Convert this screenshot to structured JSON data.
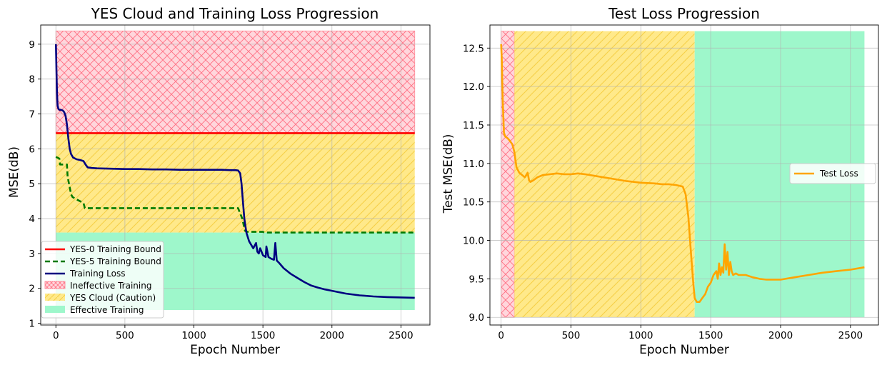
{
  "colors": {
    "ineffective_fill": "#ffc8d0",
    "ineffective_hatch": "#ff5a6e",
    "cloud_fill": "#ffe98a",
    "cloud_hatch": "#f7d34d",
    "effective_fill": "#9ef7cb",
    "red": "#ff0000",
    "green": "#007a00",
    "navy": "#000080",
    "orange": "#ffa500"
  },
  "chart_data": [
    {
      "type": "line",
      "title": "YES Cloud and Training Loss Progression",
      "xlabel": "Epoch Number",
      "ylabel": "MSE(dB)",
      "xlim": [
        -110,
        2710
      ],
      "ylim": [
        0.95,
        9.55
      ],
      "xticks": [
        0,
        500,
        1000,
        1500,
        2000,
        2500
      ],
      "xtick_labels": [
        "0",
        "500",
        "1000",
        "1500",
        "2000",
        "2500"
      ],
      "yticks": [
        1,
        2,
        3,
        4,
        5,
        6,
        7,
        8,
        9
      ],
      "ytick_labels": [
        "1",
        "2",
        "3",
        "4",
        "5",
        "6",
        "7",
        "8",
        "9"
      ],
      "grid": true,
      "legend_position": "lower-left",
      "regions": [
        {
          "name": "Ineffective Training",
          "x": [
            0,
            2600
          ],
          "y": [
            6.45,
            9.38
          ],
          "style": "hatch-cross"
        },
        {
          "name": "YES Cloud (Caution)",
          "x": [
            0,
            2600
          ],
          "y": [
            3.6,
            6.45
          ],
          "style": "hatch-diag"
        },
        {
          "name": "Effective Training",
          "x": [
            0,
            2600
          ],
          "y": [
            1.38,
            3.6
          ],
          "style": "solid"
        }
      ],
      "series": [
        {
          "name": "YES-0 Training Bound",
          "style": "solid",
          "color": "#ff0000",
          "x": [
            0,
            2600
          ],
          "y": [
            6.45,
            6.45
          ]
        },
        {
          "name": "YES-5 Training Bound",
          "style": "dashed",
          "color": "#007a00",
          "x": [
            0,
            10,
            25,
            30,
            80,
            85,
            110,
            120,
            150,
            200,
            210,
            1320,
            1330,
            1350,
            1370,
            1390,
            1500,
            1510,
            2600
          ],
          "y": [
            5.77,
            5.75,
            5.72,
            5.55,
            5.55,
            5.2,
            4.7,
            4.62,
            4.55,
            4.45,
            4.3,
            4.3,
            4.2,
            4.0,
            3.65,
            3.62,
            3.62,
            3.6,
            3.6
          ]
        },
        {
          "name": "Training Loss",
          "style": "solid",
          "color": "#000080",
          "x": [
            0,
            4,
            8,
            12,
            18,
            25,
            35,
            50,
            60,
            70,
            80,
            90,
            100,
            110,
            125,
            150,
            175,
            200,
            215,
            230,
            260,
            300,
            400,
            500,
            600,
            700,
            800,
            900,
            1000,
            1100,
            1200,
            1260,
            1300,
            1320,
            1335,
            1345,
            1355,
            1365,
            1380,
            1400,
            1430,
            1450,
            1460,
            1470,
            1480,
            1500,
            1520,
            1525,
            1540,
            1560,
            1580,
            1590,
            1600,
            1620,
            1650,
            1700,
            1750,
            1800,
            1850,
            1900,
            1950,
            2000,
            2100,
            2200,
            2300,
            2400,
            2500,
            2600
          ],
          "y": [
            9.0,
            8.3,
            7.6,
            7.25,
            7.15,
            7.12,
            7.12,
            7.1,
            7.05,
            6.95,
            6.7,
            6.3,
            6.0,
            5.85,
            5.75,
            5.7,
            5.68,
            5.65,
            5.55,
            5.47,
            5.45,
            5.44,
            5.43,
            5.42,
            5.42,
            5.41,
            5.41,
            5.4,
            5.4,
            5.4,
            5.4,
            5.39,
            5.39,
            5.38,
            5.3,
            5.0,
            4.5,
            4.0,
            3.6,
            3.35,
            3.15,
            3.3,
            3.05,
            3.0,
            3.15,
            2.95,
            2.9,
            3.2,
            2.9,
            2.85,
            2.82,
            3.3,
            2.8,
            2.72,
            2.58,
            2.42,
            2.3,
            2.18,
            2.08,
            2.02,
            1.97,
            1.93,
            1.85,
            1.8,
            1.77,
            1.75,
            1.74,
            1.73
          ]
        }
      ]
    },
    {
      "type": "line",
      "title": "Test Loss Progression",
      "xlabel": "Epoch Number",
      "ylabel": "Test MSE(dB)",
      "xlim": [
        -80,
        2700
      ],
      "ylim": [
        8.9,
        12.8
      ],
      "xticks": [
        0,
        500,
        1000,
        1500,
        2000,
        2500
      ],
      "xtick_labels": [
        "0",
        "500",
        "1000",
        "1500",
        "2000",
        "2500"
      ],
      "yticks": [
        9.0,
        9.5,
        10.0,
        10.5,
        11.0,
        11.5,
        12.0,
        12.5
      ],
      "ytick_labels": [
        "9.0",
        "9.5",
        "10.0",
        "10.5",
        "11.0",
        "11.5",
        "12.0",
        "12.5"
      ],
      "grid": true,
      "legend_position": "center-right",
      "regions": [
        {
          "name": "Ineffective Training",
          "x": [
            0,
            95
          ],
          "y": [
            9.0,
            12.72
          ],
          "style": "hatch-cross"
        },
        {
          "name": "YES Cloud (Caution)",
          "x": [
            95,
            1385
          ],
          "y": [
            9.0,
            12.72
          ],
          "style": "hatch-diag"
        },
        {
          "name": "Effective Training",
          "x": [
            1385,
            2600
          ],
          "y": [
            9.0,
            12.72
          ],
          "style": "solid"
        }
      ],
      "series": [
        {
          "name": "Test Loss",
          "style": "solid",
          "color": "#ffa500",
          "x": [
            0,
            5,
            12,
            20,
            30,
            45,
            60,
            80,
            95,
            110,
            130,
            150,
            170,
            190,
            200,
            210,
            230,
            260,
            300,
            350,
            400,
            450,
            500,
            550,
            600,
            700,
            800,
            900,
            1000,
            1100,
            1150,
            1200,
            1250,
            1300,
            1320,
            1340,
            1360,
            1375,
            1385,
            1400,
            1420,
            1440,
            1460,
            1480,
            1500,
            1520,
            1540,
            1550,
            1560,
            1570,
            1580,
            1590,
            1600,
            1610,
            1620,
            1630,
            1640,
            1650,
            1660,
            1680,
            1700,
            1750,
            1800,
            1850,
            1900,
            2000,
            2100,
            2200,
            2300,
            2400,
            2500,
            2600
          ],
          "y": [
            12.55,
            12.35,
            11.8,
            11.4,
            11.35,
            11.33,
            11.3,
            11.25,
            11.15,
            10.95,
            10.88,
            10.85,
            10.82,
            10.88,
            10.78,
            10.76,
            10.78,
            10.82,
            10.85,
            10.86,
            10.87,
            10.86,
            10.86,
            10.87,
            10.86,
            10.83,
            10.8,
            10.77,
            10.75,
            10.74,
            10.73,
            10.73,
            10.72,
            10.7,
            10.6,
            10.3,
            9.8,
            9.45,
            9.25,
            9.2,
            9.2,
            9.25,
            9.3,
            9.4,
            9.45,
            9.55,
            9.6,
            9.5,
            9.7,
            9.55,
            9.65,
            9.58,
            9.95,
            9.62,
            9.85,
            9.55,
            9.72,
            9.6,
            9.55,
            9.57,
            9.55,
            9.55,
            9.52,
            9.5,
            9.49,
            9.49,
            9.52,
            9.55,
            9.58,
            9.6,
            9.62,
            9.65
          ]
        }
      ]
    }
  ]
}
